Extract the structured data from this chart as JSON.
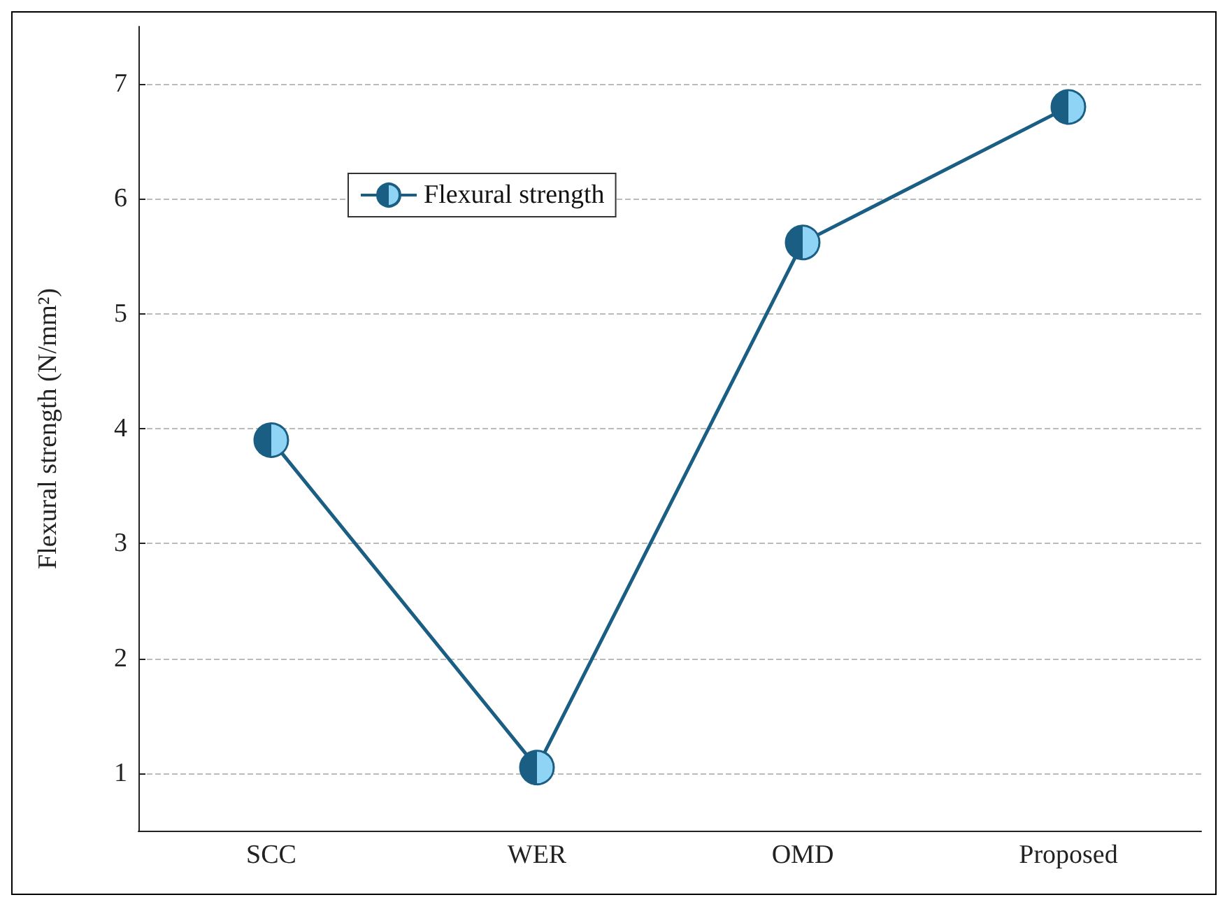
{
  "chart_data": {
    "type": "line",
    "ylabel": "Flexural strength (N/mm²)",
    "categories": [
      "SCC",
      "WER",
      "OMD",
      "Proposed"
    ],
    "series": [
      {
        "name": "Flexural strength",
        "color": "#1b5e83",
        "values": [
          3.9,
          1.05,
          5.62,
          6.8
        ]
      }
    ],
    "ylim": [
      0.5,
      7.5
    ],
    "yticks": [
      1,
      2,
      3,
      4,
      5,
      6,
      7
    ],
    "grid": "y",
    "legend": "top left",
    "marker": "circle",
    "line_style": "solid"
  }
}
